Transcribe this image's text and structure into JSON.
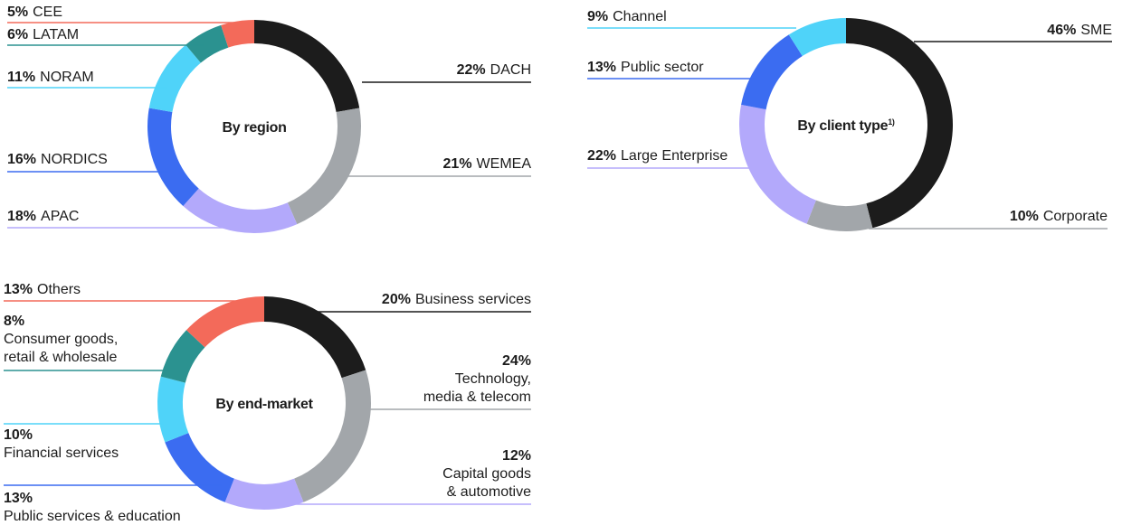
{
  "chart_data": [
    {
      "type": "pie",
      "title": "By region",
      "categories": [
        "DACH",
        "WEMEA",
        "APAC",
        "NORDICS",
        "NORAM",
        "LATAM",
        "CEE"
      ],
      "values": [
        22,
        21,
        18,
        16,
        11,
        6,
        5
      ],
      "value_labels": [
        "22%",
        "21%",
        "18%",
        "16%",
        "11%",
        "6%",
        "5%"
      ],
      "colors": [
        "#1c1c1c",
        "#a2a6aa",
        "#b3a9fb",
        "#3b6cf1",
        "#4fd3f9",
        "#2b9290",
        "#f36a5a"
      ]
    },
    {
      "type": "pie",
      "title": "By client type",
      "title_note": "1)",
      "categories": [
        "SME",
        "Corporate",
        "Large Enterprise",
        "Public sector",
        "Channel"
      ],
      "values": [
        46,
        10,
        22,
        13,
        9
      ],
      "value_labels": [
        "46%",
        "10%",
        "22%",
        "13%",
        "9%"
      ],
      "colors": [
        "#1c1c1c",
        "#a2a6aa",
        "#b3a9fb",
        "#3b6cf1",
        "#4fd3f9"
      ]
    },
    {
      "type": "pie",
      "title": "By end-market",
      "categories": [
        "Business services",
        "Technology,\nmedia & telecom",
        "Capital goods\n& automotive",
        "Public services & education",
        "Financial services",
        "Consumer goods,\nretail & wholesale",
        "Others"
      ],
      "values": [
        20,
        24,
        12,
        13,
        10,
        8,
        13
      ],
      "value_labels": [
        "20%",
        "24%",
        "12%",
        "13%",
        "10%",
        "8%",
        "13%"
      ],
      "colors": [
        "#1c1c1c",
        "#a2a6aa",
        "#b3a9fb",
        "#3b6cf1",
        "#4fd3f9",
        "#2b9290",
        "#f36a5a"
      ]
    }
  ]
}
